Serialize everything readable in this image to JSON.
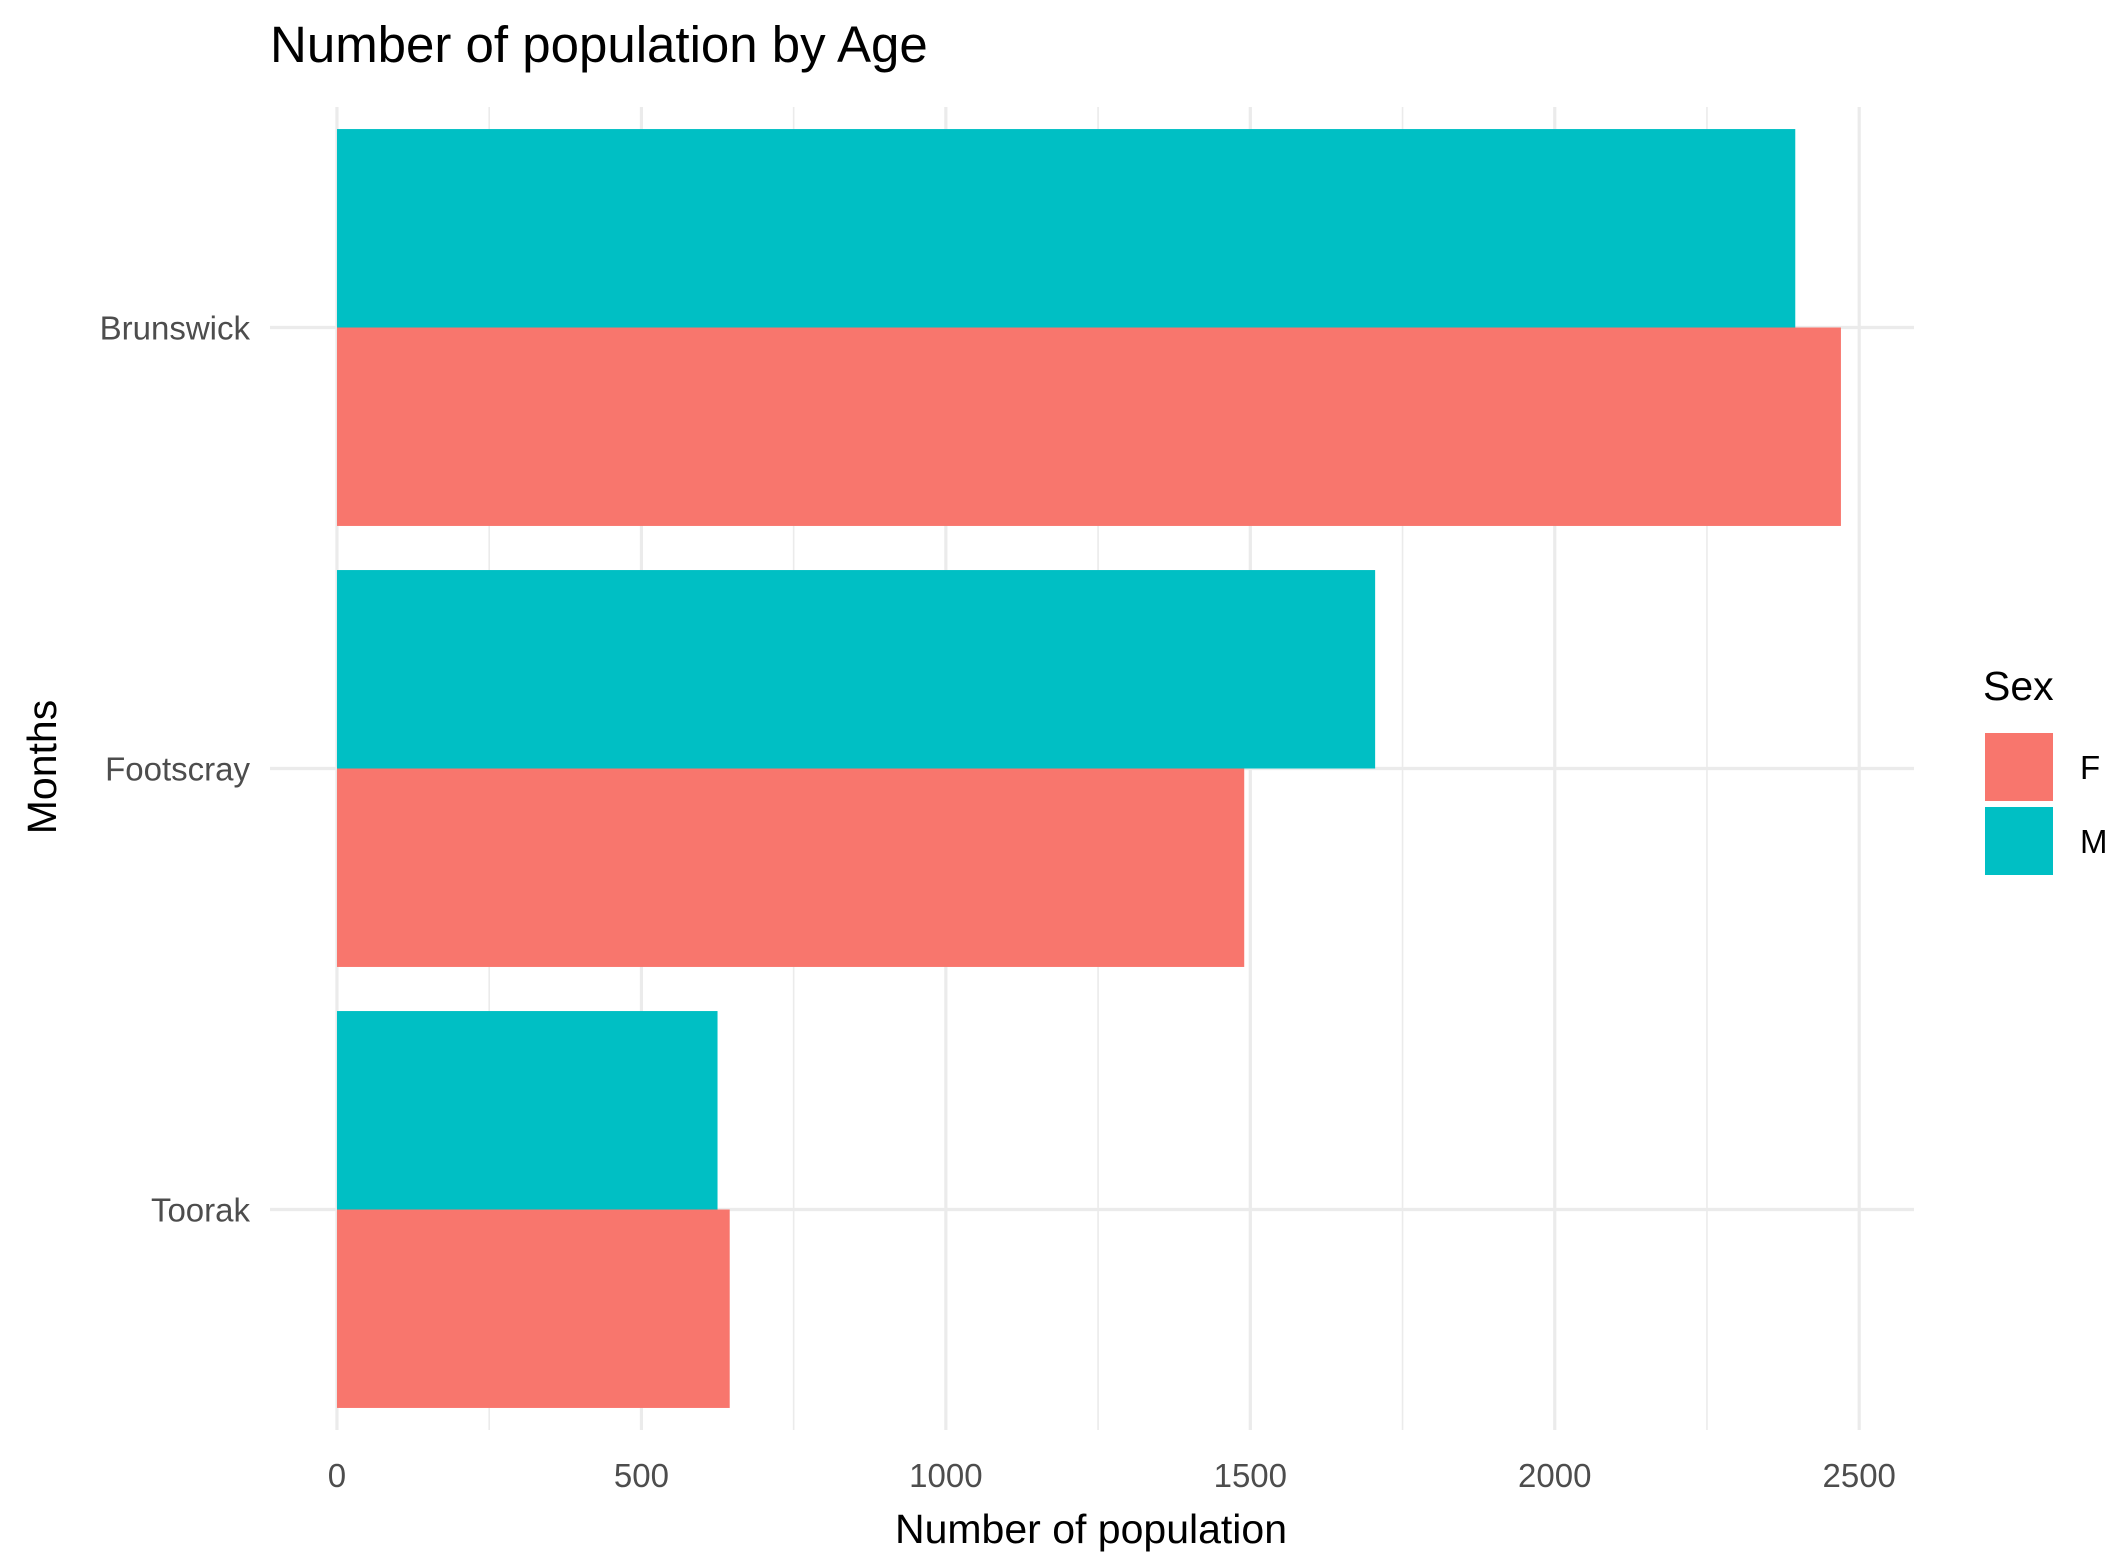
{
  "chart_data": {
    "type": "bar",
    "orientation": "horizontal",
    "position": "dodge",
    "title": "Number of population by Age",
    "xlabel": "Number of population",
    "ylabel": "Months",
    "categories": [
      "Brunswick",
      "Footscray",
      "Toorak"
    ],
    "series": [
      {
        "name": "F",
        "color": "#F8766D",
        "values": [
          2470,
          1490,
          645
        ]
      },
      {
        "name": "M",
        "color": "#00BFC4",
        "values": [
          2395,
          1705,
          625
        ]
      }
    ],
    "xlim": [
      -110,
      2590
    ],
    "xticks": [
      0,
      500,
      1000,
      1500,
      2000,
      2500
    ],
    "xtick_labels": [
      "0",
      "500",
      "1000",
      "1500",
      "2000",
      "2500"
    ],
    "grid": true,
    "legend": {
      "title": "Sex",
      "position": "right"
    }
  }
}
